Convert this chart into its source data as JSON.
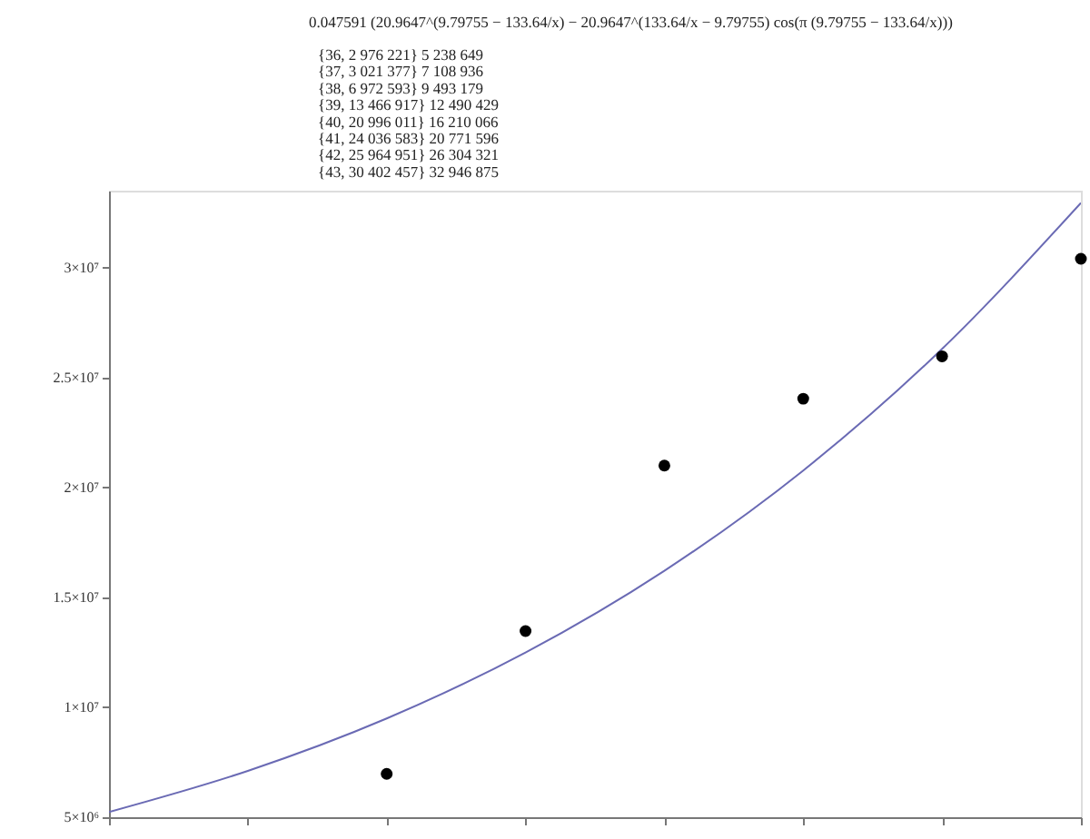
{
  "chart_data": {
    "type": "scatter",
    "annotations": [
      "0.047591 (20.9647^(9.79755 − 133.64/x) − 20.9647^(133.64/x − 9.79755) cos(π (9.79755 − 133.64/x)))",
      "{36, 2 976 221} 5 238 649",
      "{37, 3 021 377} 7 108 936",
      "{38, 6 972 593} 9 493 179",
      "{39, 13 466 917} 12 490 429",
      "{40, 20 996 011} 16 210 066",
      "{41, 24 036 583} 20 771 596",
      "{42, 25 964 951} 26 304 321",
      "{43, 30 402 457} 32 946 875"
    ],
    "categories": [
      null,
      null,
      null,
      null,
      null,
      null,
      null,
      null
    ],
    "ylim": [
      5000000,
      33500000
    ],
    "yticks": [
      {
        "value": 5000000,
        "label": "5×10⁶"
      },
      {
        "value": 10000000,
        "label": "1×10⁷"
      },
      {
        "value": 15000000,
        "label": "1.5×10⁷"
      },
      {
        "value": 20000000,
        "label": "2×10⁷"
      },
      {
        "value": 25000000,
        "label": "2.5×10⁷"
      },
      {
        "value": 30000000,
        "label": "3×10⁷"
      }
    ],
    "tick_labels": "y",
    "grid": false,
    "series": [
      {
        "type": "line",
        "color": "#6a6ab4",
        "marker": "none",
        "line_style": "solid",
        "values": [
          5238649,
          7108936,
          9493179,
          12490429,
          16210066,
          20771596,
          26304321,
          32946875
        ]
      },
      {
        "color": "#000000",
        "marker": "circle",
        "values": [
          null,
          null,
          6972593,
          13466917,
          20996011,
          24036583,
          25964951,
          30402457
        ]
      }
    ]
  }
}
